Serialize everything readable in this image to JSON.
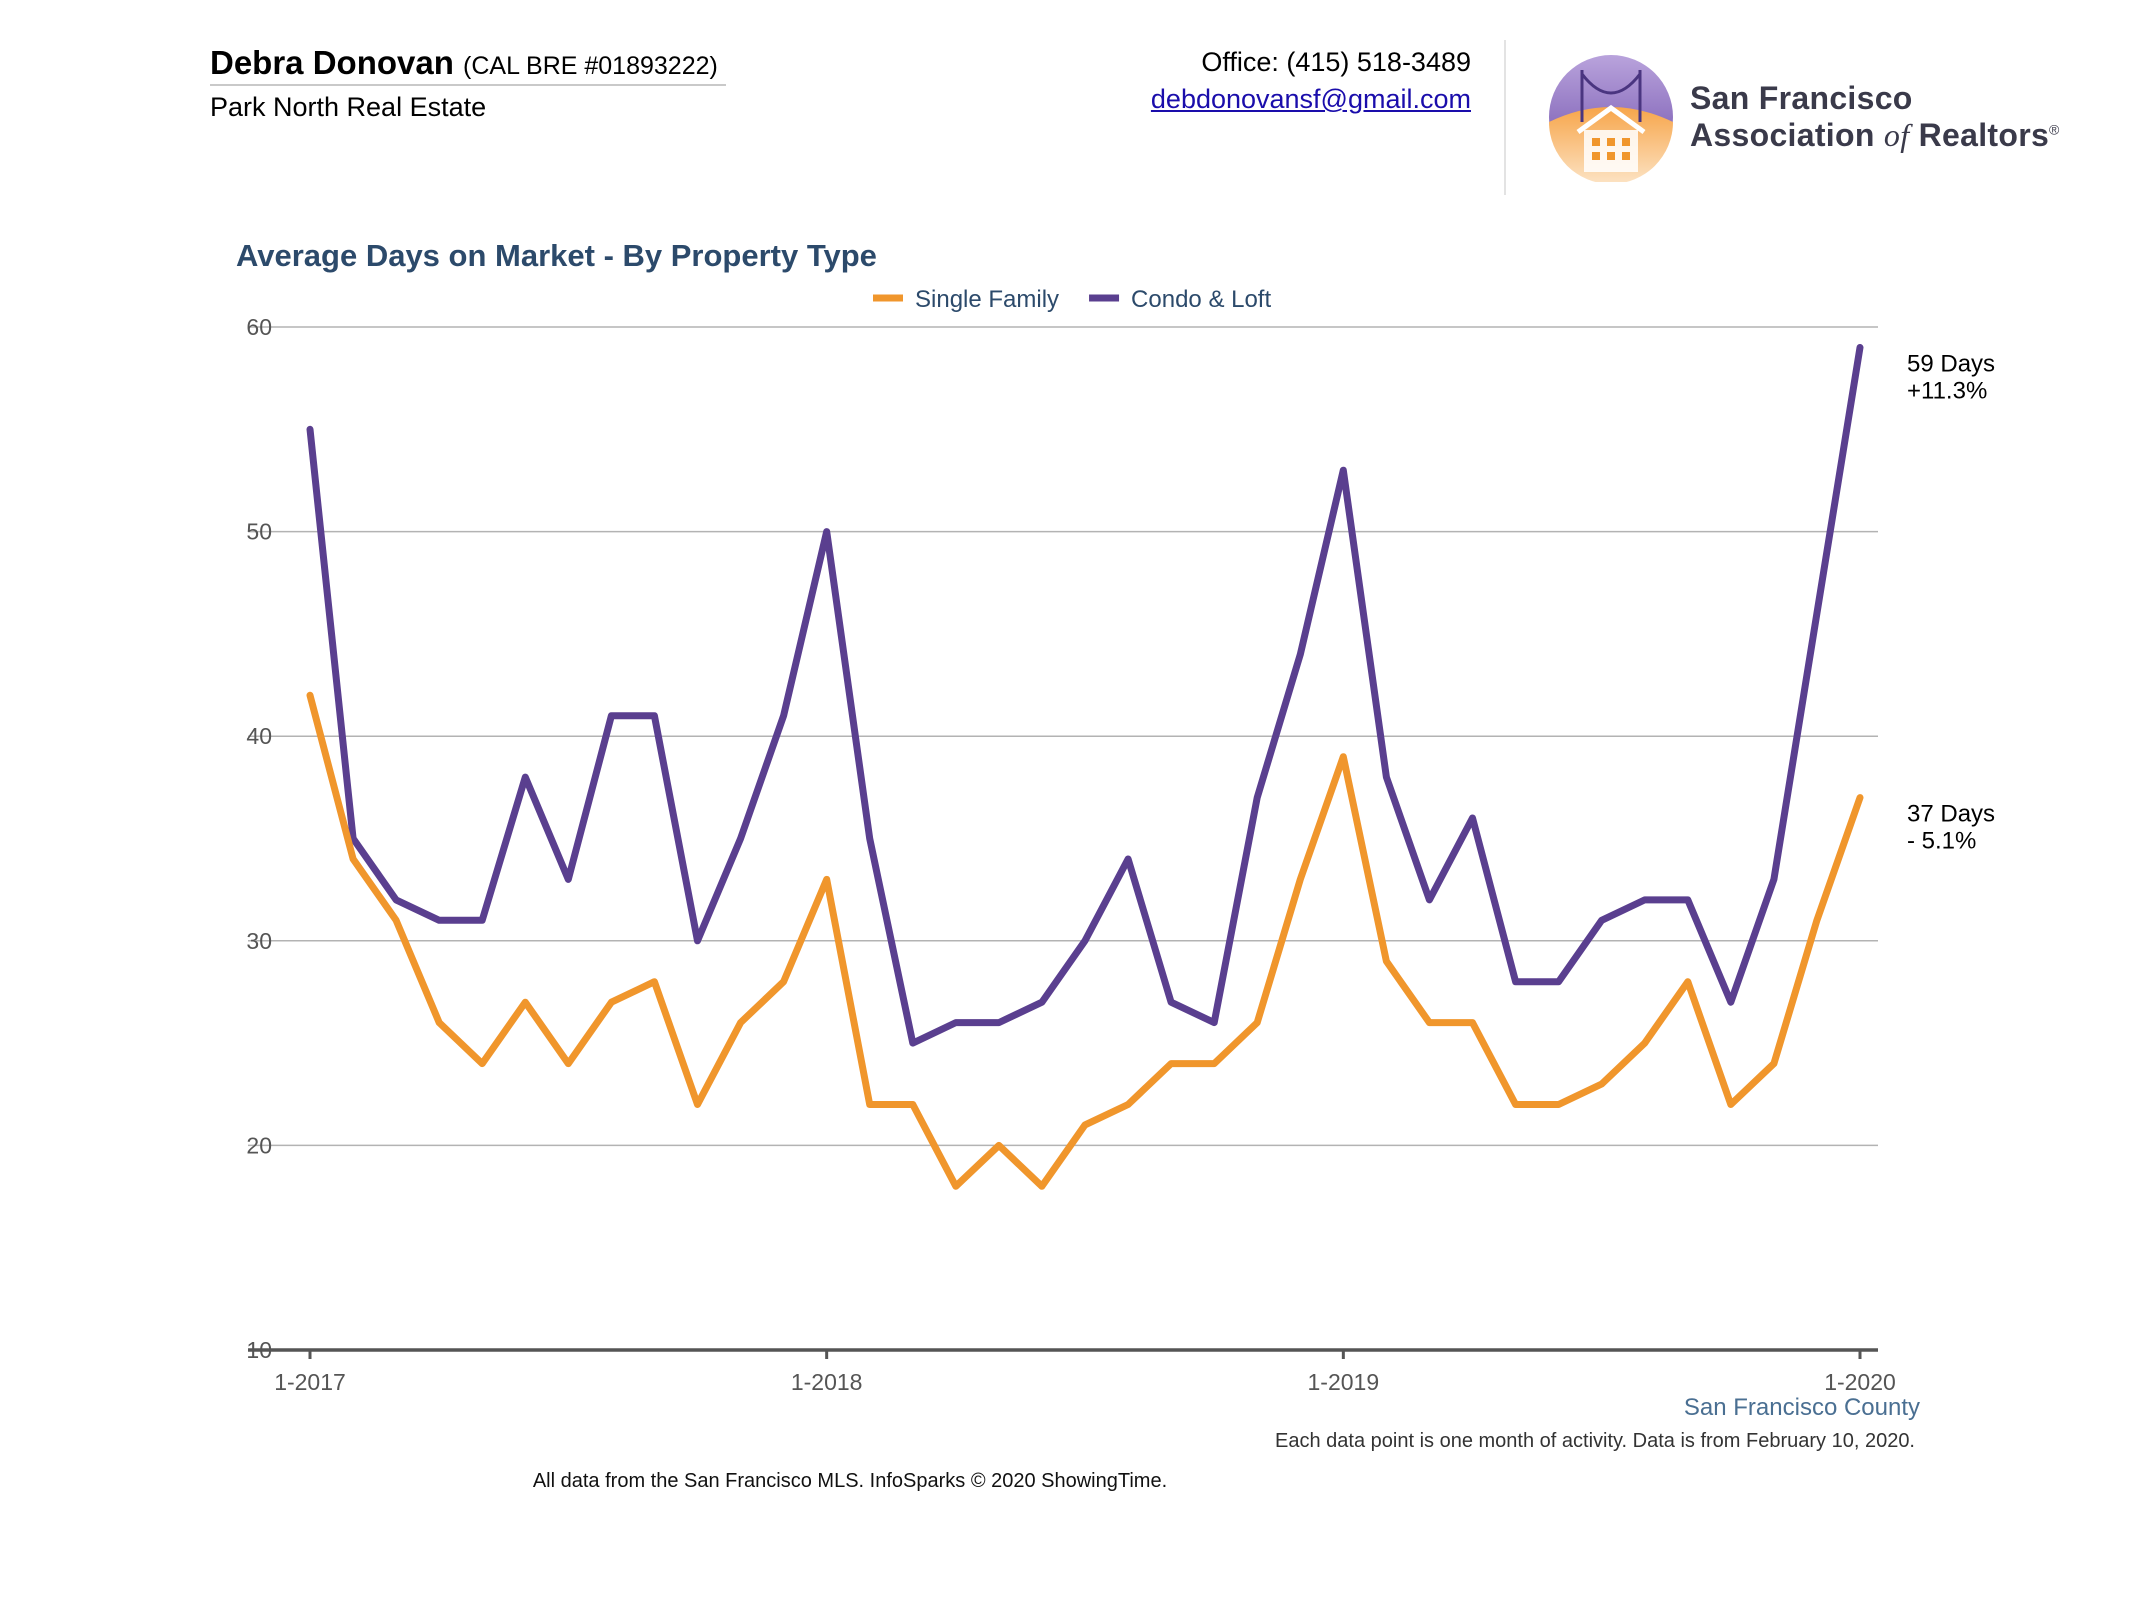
{
  "header": {
    "agent_name": "Debra Donovan",
    "agent_license": "(CAL BRE #01893222)",
    "agent_company": "Park North Real Estate",
    "office_phone": "Office: (415) 518-3489",
    "office_email": "debdonovansf@gmail.com",
    "logo_line_1": "San Francisco",
    "logo_line_2_a": "Association",
    "logo_line_2_of": "of",
    "logo_line_2_b": "Realtors",
    "logo_reg": "®"
  },
  "colors": {
    "single_family": "#f0962c",
    "condo_loft": "#5a3f8f",
    "title": "#2c4a6b",
    "grid": "#b3b3b3",
    "axis": "#555555",
    "county": "#4a6f92"
  },
  "chart_data": {
    "type": "line",
    "title": "Average Days on Market - By Property Type",
    "subtitle": "",
    "xlabel": "",
    "ylabel": "",
    "ylim": [
      10,
      60
    ],
    "yticks": [
      10,
      20,
      30,
      40,
      50,
      60
    ],
    "grid": true,
    "legend_position": "top-center",
    "x_tick_labels": [
      "1-2017",
      "1-2018",
      "1-2019",
      "1-2020"
    ],
    "x_tick_indices": [
      0,
      12,
      24,
      36
    ],
    "x": [
      "1-2017",
      "2-2017",
      "3-2017",
      "4-2017",
      "5-2017",
      "6-2017",
      "7-2017",
      "8-2017",
      "9-2017",
      "10-2017",
      "11-2017",
      "12-2017",
      "1-2018",
      "2-2018",
      "3-2018",
      "4-2018",
      "5-2018",
      "6-2018",
      "7-2018",
      "8-2018",
      "9-2018",
      "10-2018",
      "11-2018",
      "12-2018",
      "1-2019",
      "2-2019",
      "3-2019",
      "4-2019",
      "5-2019",
      "6-2019",
      "7-2019",
      "8-2019",
      "9-2019",
      "10-2019",
      "11-2019",
      "12-2019",
      "1-2020"
    ],
    "series": [
      {
        "name": "Single Family",
        "color": "#f0962c",
        "values": [
          42,
          34,
          31,
          26,
          24,
          27,
          24,
          27,
          28,
          22,
          26,
          28,
          33,
          22,
          22,
          18,
          20,
          18,
          21,
          22,
          24,
          24,
          26,
          33,
          39,
          29,
          26,
          26,
          22,
          22,
          23,
          25,
          28,
          22,
          24,
          31,
          37
        ],
        "end_label_1": "37 Days",
        "end_label_2": "- 5.1%"
      },
      {
        "name": "Condo & Loft",
        "color": "#5a3f8f",
        "values": [
          55,
          35,
          32,
          31,
          31,
          38,
          33,
          41,
          41,
          30,
          35,
          41,
          50,
          35,
          25,
          26,
          26,
          27,
          30,
          34,
          27,
          26,
          37,
          44,
          53,
          38,
          32,
          36,
          28,
          28,
          31,
          32,
          32,
          27,
          33,
          46,
          59
        ],
        "end_label_1": "59 Days",
        "end_label_2": "+11.3%"
      }
    ],
    "region_label": "San Francisco County",
    "footnote": "Each data point is one month of activity. Data is from February 10, 2020.",
    "source": "All data from the San Francisco MLS. InfoSparks © 2020 ShowingTime."
  }
}
